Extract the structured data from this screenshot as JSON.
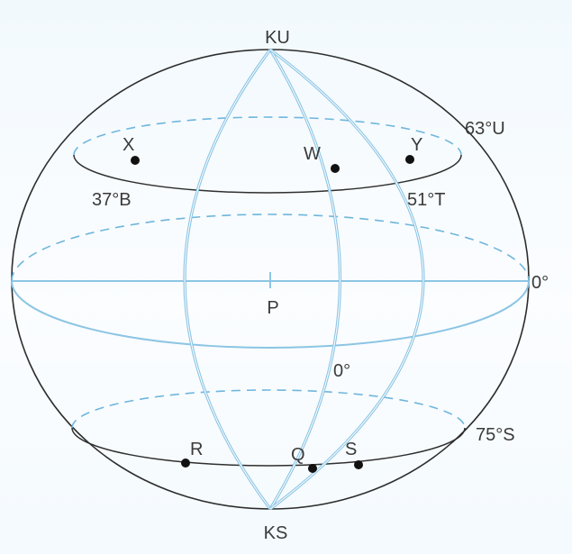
{
  "poles": {
    "north": "KU",
    "south": "KS"
  },
  "center_label": "P",
  "latitude_labels": {
    "north_circle": "63°U",
    "equator": "0°",
    "south_circle": "75°S"
  },
  "longitude_labels": {
    "west": "37°B",
    "east": "51°T",
    "prime": "0°"
  },
  "points": {
    "x": "X",
    "w": "W",
    "y": "Y",
    "r": "R",
    "q": "Q",
    "s": "S"
  },
  "colors": {
    "outline": "#2d2d2d",
    "meridian": "#8cc5e4",
    "dashed": "#6fb6dc",
    "point": "#111111"
  }
}
